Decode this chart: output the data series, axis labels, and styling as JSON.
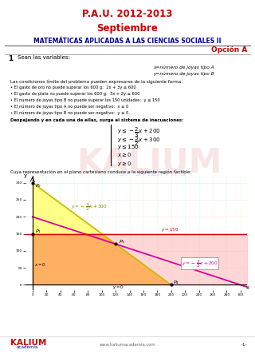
{
  "title1": "P.A.U. 2012-2013",
  "title2": "Septiembre",
  "title3": "MATEMÁTICAS APLICADAS A LAS CIENCIAS SOCIALES II",
  "opcion": "Opción A",
  "section": "1",
  "section_title": "Sean las variables:",
  "var_x": "x=número de joyas tipo A",
  "var_y": "y=número de joyas tipo B",
  "cond_intro": "Las condiciones límite del problema pueden expresarse de la siguiente forma:",
  "bullets": [
    "El gasto de oro no puede superar los 600 g:  2x + 3y ≤ 600",
    "El gasto de plata no puede superar los 600 g:  3x + 2y ≤ 600",
    "El número de joyas tipo B no puede superar las 150 unidades:  y ≤ 150",
    "El número de joyas tipo A no puede ser negativo:  x ≥ 0",
    "El número de joyas tipo B no puede ser negativo:  y ≥ 0."
  ],
  "despejando": "Despejando y en cada una de ellas, surge el sistema de inecuaciones:",
  "region_text": "Cuya representación en el plano cartesiano conduce a la siguiente región factible:",
  "website": "www.kaliumacademia.com",
  "page": "-1-",
  "title1_color": "#cc0000",
  "title2_color": "#cc0000",
  "title3_color": "#000099",
  "opcion_color": "#cc0000",
  "line_color": "#666666",
  "bg_color": "#ffffff",
  "yellow_fill": "#ffff88",
  "pink_fill": "#ffbbbb",
  "orange_fill": "#ffaa55",
  "kalium_red": "#cc0000",
  "kalium_blue": "#000099",
  "grid_color_h": "#ffdddd",
  "grid_color_v": "#ddffdd",
  "xlim": [
    -10,
    310
  ],
  "ylim": [
    -15,
    320
  ],
  "xticks": [
    0,
    20,
    40,
    60,
    80,
    100,
    120,
    140,
    160,
    180,
    200,
    220,
    240,
    260,
    280,
    300
  ],
  "yticks": [
    0,
    50,
    100,
    150,
    200,
    250,
    300
  ],
  "P1": [
    0,
    150
  ],
  "P2": [
    0,
    300
  ],
  "P3": [
    120,
    120
  ],
  "P4": [
    200,
    0
  ]
}
